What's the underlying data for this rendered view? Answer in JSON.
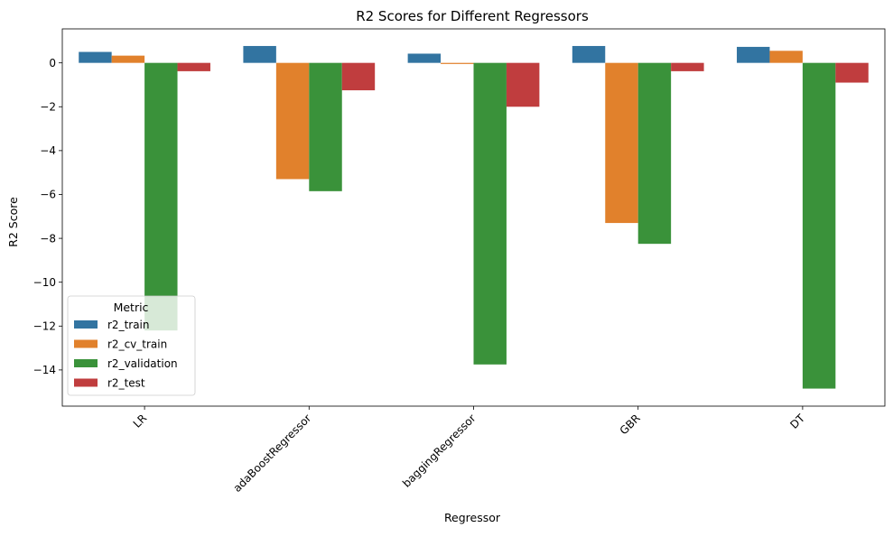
{
  "chart_data": {
    "type": "bar",
    "title": "R2 Scores for Different Regressors",
    "xlabel": "Regressor",
    "ylabel": "R2 Score",
    "categories": [
      "LR",
      "adaBoostRegressor",
      "baggingRegressor",
      "GBR",
      "DT"
    ],
    "ylim": [
      -15.65,
      1.55
    ],
    "yticks": [
      0,
      -2,
      -4,
      -6,
      -8,
      -10,
      -12,
      -14
    ],
    "ytick_labels": [
      "0",
      "−2",
      "−4",
      "−6",
      "−8",
      "−10",
      "−12",
      "−14"
    ],
    "grid": false,
    "series": [
      {
        "name": "r2_train",
        "color": "#3274a1",
        "values": [
          0.5,
          0.77,
          0.42,
          0.77,
          0.73
        ]
      },
      {
        "name": "r2_cv_train",
        "color": "#e1812c",
        "values": [
          0.33,
          -5.3,
          -0.05,
          -7.3,
          0.55
        ]
      },
      {
        "name": "r2_validation",
        "color": "#3a923a",
        "values": [
          -12.2,
          -5.85,
          -13.75,
          -8.25,
          -14.85
        ]
      },
      {
        "name": "r2_test",
        "color": "#c03d3e",
        "values": [
          -0.38,
          -1.25,
          -2.0,
          -0.38,
          -0.9
        ]
      }
    ],
    "legend": {
      "title": "Metric",
      "placement": "lower-left"
    }
  }
}
